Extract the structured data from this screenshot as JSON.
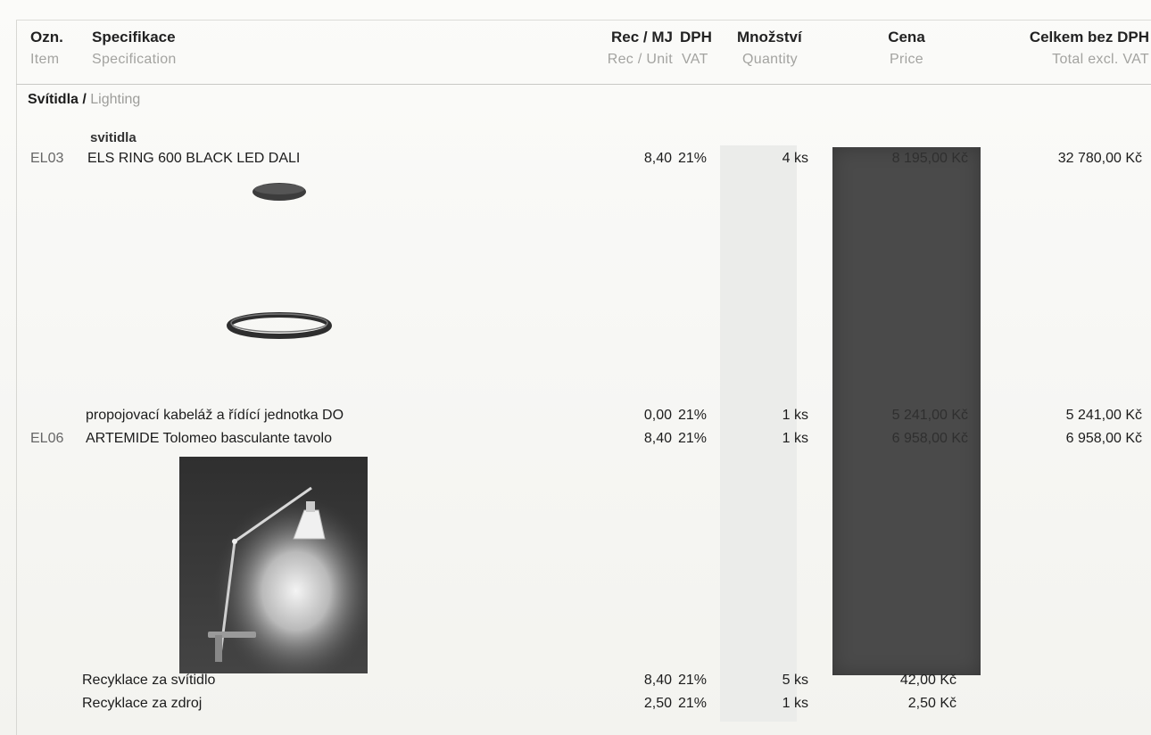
{
  "header": {
    "item_cs": "Ozn.",
    "item_en": "Item",
    "spec_cs": "Specifikace",
    "spec_en": "Specification",
    "rec_cs": "Rec / MJ",
    "rec_en": "Rec / Unit",
    "vat_cs": "DPH",
    "vat_en": "VAT",
    "qty_cs": "Množství",
    "qty_en": "Quantity",
    "price_cs": "Cena",
    "price_en": "Price",
    "total_cs": "Celkem bez DPH",
    "total_en": "Total excl. VAT"
  },
  "section": {
    "title_cs": "Svítidla /",
    "title_en": "Lighting"
  },
  "group_label": "svitidla",
  "rows": [
    {
      "code": "EL03",
      "spec": "ELS RING 600 BLACK LED DALI",
      "rec": "8,40",
      "vat": "21%",
      "qty": "4 ks",
      "price": "8 195,00 Kč",
      "total": "32 780,00 Kč"
    },
    {
      "code": "",
      "spec": "propojovací kabeláž a řídící jednotka DO",
      "rec": "0,00",
      "vat": "21%",
      "qty": "1 ks",
      "price": "5 241,00 Kč",
      "total": "5 241,00 Kč"
    },
    {
      "code": "EL06",
      "spec": "ARTEMIDE Tolomeo basculante tavolo",
      "rec": "8,40",
      "vat": "21%",
      "qty": "1 ks",
      "price": "6 958,00 Kč",
      "total": "6 958,00 Kč"
    },
    {
      "code": "",
      "spec": "Recyklace za svítidlo",
      "rec": "8,40",
      "vat": "21%",
      "qty": "5 ks",
      "price": "42,00 Kč",
      "total": ""
    },
    {
      "code": "",
      "spec": "Recyklace za zdroj",
      "rec": "2,50",
      "vat": "21%",
      "qty": "1 ks",
      "price": "2,50 Kč",
      "total": ""
    }
  ],
  "colors": {
    "price_band": "#4a4a4a",
    "qty_band": "#ebecea",
    "header_muted": "#a3a3a0"
  },
  "images": [
    {
      "name": "els-ring-pendant-image"
    },
    {
      "name": "artemide-tolomeo-lamp-image"
    }
  ]
}
